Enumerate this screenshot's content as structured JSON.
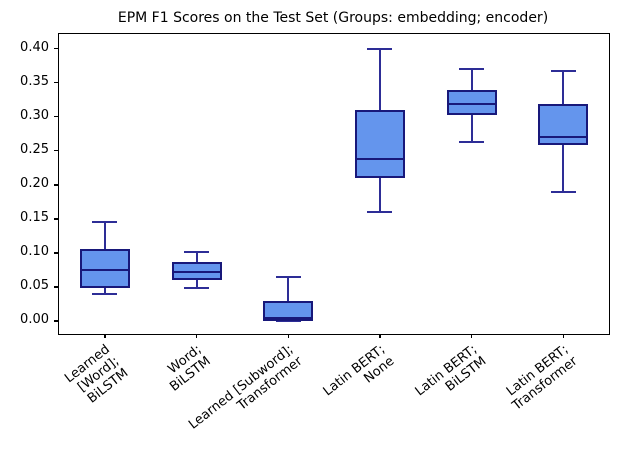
{
  "chart_data": {
    "type": "boxplot",
    "title": "EPM F1 Scores on the Test Set (Groups: embedding; encoder)",
    "xlabel": "",
    "ylabel": "",
    "grid": false,
    "ylim": [
      -0.019,
      0.4215
    ],
    "yticks": [
      "0.00",
      "0.05",
      "0.10",
      "0.15",
      "0.20",
      "0.25",
      "0.30",
      "0.35",
      "0.40"
    ],
    "categories": [
      "Learned [Word];\nBiLSTM",
      "Word;\nBiLSTM",
      "Learned [Subword];\nTransformer",
      "Latin BERT;\nNone",
      "Latin BERT;\nBiLSTM",
      "Latin BERT;\nTransformer"
    ],
    "boxes": [
      {
        "name": "Learned [Word]; BiLSTM",
        "whisker_low": 0.039,
        "q1": 0.05,
        "median": 0.075,
        "q3": 0.104,
        "whisker_high": 0.146
      },
      {
        "name": "Word; BiLSTM",
        "whisker_low": 0.049,
        "q1": 0.062,
        "median": 0.072,
        "q3": 0.085,
        "whisker_high": 0.101
      },
      {
        "name": "Learned [Subword]; Transformer",
        "whisker_low": 0.0,
        "q1": 0.001,
        "median": 0.004,
        "q3": 0.028,
        "whisker_high": 0.065
      },
      {
        "name": "Latin BERT; None",
        "whisker_low": 0.16,
        "q1": 0.212,
        "median": 0.238,
        "q3": 0.309,
        "whisker_high": 0.4
      },
      {
        "name": "Latin BERT; BiLSTM",
        "whisker_low": 0.263,
        "q1": 0.304,
        "median": 0.319,
        "q3": 0.338,
        "whisker_high": 0.37
      },
      {
        "name": "Latin BERT; Transformer",
        "whisker_low": 0.19,
        "q1": 0.26,
        "median": 0.27,
        "q3": 0.317,
        "whisker_high": 0.367
      }
    ],
    "colors": {
      "box_fill": "#6495ED",
      "box_edge": "#18187A",
      "whisker": "#2D2D96",
      "median": "#18187A",
      "spine": "#000000"
    }
  }
}
